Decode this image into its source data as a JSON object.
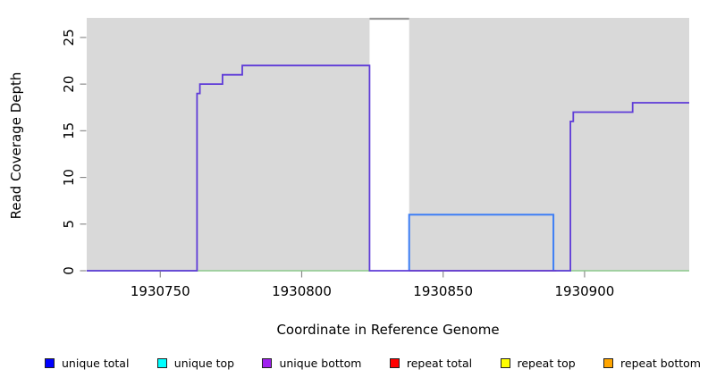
{
  "chart_data": {
    "type": "line",
    "title": "",
    "xlabel": "Coordinate in Reference Genome",
    "ylabel": "Read Coverage Depth",
    "xlim": [
      1930724,
      1930937
    ],
    "ylim": [
      0,
      27.1
    ],
    "x_ticks": [
      1930750,
      1930800,
      1930850,
      1930900
    ],
    "y_ticks": [
      0,
      5,
      10,
      15,
      20,
      25
    ],
    "grid": false,
    "background_regions": [
      {
        "name": "shaded-region-left",
        "x0": 1930724,
        "x1": 1930824,
        "color": "#d9d9d9"
      },
      {
        "name": "shaded-region-right",
        "x0": 1930838,
        "x1": 1930937,
        "color": "#d9d9d9"
      }
    ],
    "series": [
      {
        "name": "baseline-green-left",
        "color": "#8cc98c",
        "width": 1.4,
        "points": [
          [
            1930724,
            0
          ],
          [
            1930824,
            0
          ]
        ]
      },
      {
        "name": "baseline-green-right",
        "color": "#8cc98c",
        "width": 1.4,
        "points": [
          [
            1930838,
            0
          ],
          [
            1930937,
            0
          ]
        ]
      },
      {
        "name": "repeat-total-baseline",
        "color": "#e14b5e",
        "width": 1.4,
        "points": [
          [
            1930838,
            0
          ],
          [
            1930890,
            0
          ]
        ]
      },
      {
        "name": "unique-total-block",
        "color": "#3d7ef5",
        "width": 2,
        "points": [
          [
            1930838,
            0
          ],
          [
            1930838,
            6
          ],
          [
            1930889,
            6
          ],
          [
            1930889,
            0
          ]
        ]
      },
      {
        "name": "offscale-gap-segment",
        "color": "#9a9a9a",
        "width": 2.2,
        "points": [
          [
            1930824,
            27
          ],
          [
            1930838,
            27
          ]
        ]
      },
      {
        "name": "unique-bottom-coverage",
        "color": "#5e3bd8",
        "width": 1.8,
        "points": [
          [
            1930724,
            0
          ],
          [
            1930763,
            0
          ],
          [
            1930763,
            19
          ],
          [
            1930764,
            19
          ],
          [
            1930764,
            20
          ],
          [
            1930772,
            20
          ],
          [
            1930772,
            21
          ],
          [
            1930779,
            21
          ],
          [
            1930779,
            22
          ],
          [
            1930824,
            22
          ],
          [
            1930824,
            0
          ],
          [
            1930895,
            0
          ],
          [
            1930895,
            16
          ],
          [
            1930896,
            16
          ],
          [
            1930896,
            17
          ],
          [
            1930917,
            17
          ],
          [
            1930917,
            18
          ],
          [
            1930937,
            18
          ]
        ]
      }
    ],
    "legend": {
      "position": "bottom",
      "items": [
        {
          "label": "unique total",
          "color": "#0000ff"
        },
        {
          "label": "unique top",
          "color": "#00ffff"
        },
        {
          "label": "unique bottom",
          "color": "#a020f0"
        },
        {
          "label": "repeat total",
          "color": "#ff0000"
        },
        {
          "label": "repeat top",
          "color": "#ffff00"
        },
        {
          "label": "repeat bottom",
          "color": "#ffa500"
        }
      ]
    },
    "tick_color": "#8c8c8c",
    "text_color": "#000000"
  }
}
